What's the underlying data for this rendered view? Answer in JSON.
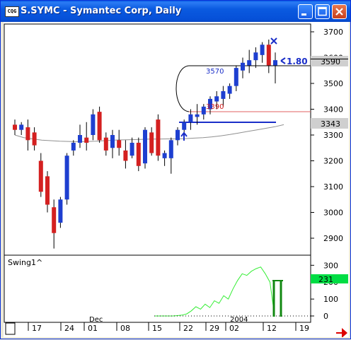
{
  "window": {
    "title": "S.SYMC - Symantec Corp, Daily",
    "app_icon_text": "CQG"
  },
  "chart_data": [
    {
      "type": "candlestick",
      "symbol": "S.SYMC",
      "yticks": [
        "3700",
        "3600",
        "3500",
        "3400",
        "3300",
        "3200",
        "3100",
        "3000",
        "2900"
      ],
      "current_price_label": "3590",
      "marker_label": "3343",
      "annotations": [
        "3570",
        "3390",
        "1.80"
      ],
      "colors": {
        "up": "#1e3fd0",
        "down": "#d42020",
        "upper_line": "#e06060",
        "lower_line": "#1a2ec8",
        "moving_average": "#909090"
      }
    },
    {
      "type": "line",
      "study_label": "Swing1^",
      "yticks": [
        "300",
        "200",
        "100",
        "0"
      ],
      "current_value_label": "231",
      "colors": {
        "line": "#33ee33",
        "bars": "#118811",
        "label_bg": "#00dd44"
      }
    }
  ],
  "xaxis": {
    "day_labels": [
      "17",
      "24",
      "01",
      "08",
      "15",
      "22",
      "29",
      "02",
      "12",
      "19"
    ],
    "month_labels": [
      "Dec",
      "2004"
    ]
  },
  "scroll_arrow_color": "#dd0000"
}
